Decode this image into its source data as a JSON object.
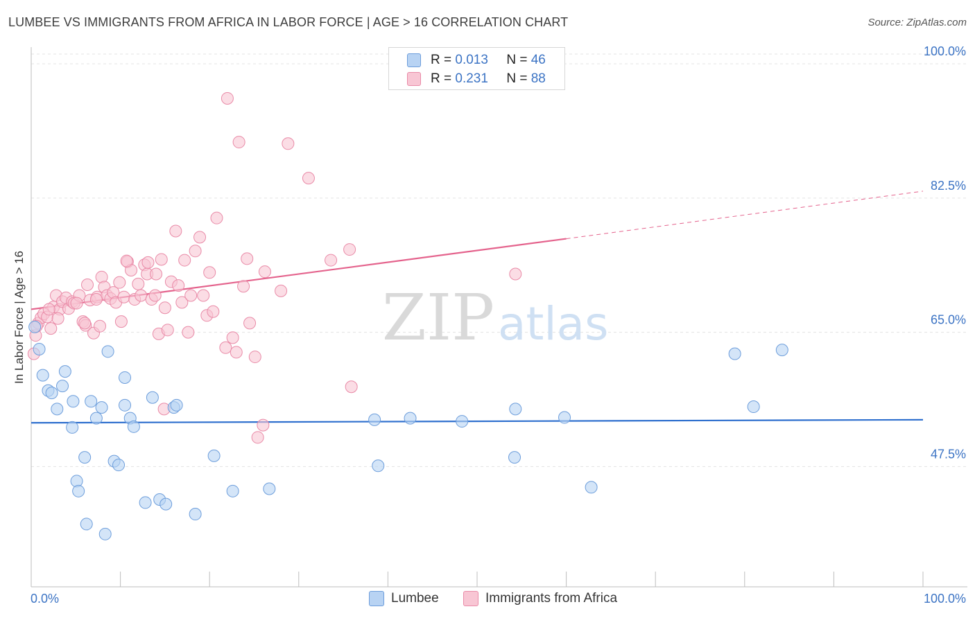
{
  "header": {
    "title": "LUMBEE VS IMMIGRANTS FROM AFRICA IN LABOR FORCE | AGE > 16 CORRELATION CHART",
    "source": "Source: ZipAtlas.com"
  },
  "legend": {
    "r_label": "R =",
    "n_label": "N =",
    "rows": [
      {
        "r": "0.013",
        "n": "46"
      },
      {
        "r": "0.231",
        "n": "88"
      }
    ]
  },
  "watermark": {
    "zip": "ZIP",
    "atlas": "atlas"
  },
  "colors": {
    "lumbee_fill": "#b8d3f3",
    "lumbee_stroke": "#6c9ddb",
    "lumbee_line": "#2e6fce",
    "africa_fill": "#f8c6d4",
    "africa_stroke": "#e98aa7",
    "africa_line": "#e4628c",
    "axis_value": "#3b73c4",
    "grid": "#e3e3e3"
  },
  "chart_data": {
    "type": "scatter",
    "title": "LUMBEE VS IMMIGRANTS FROM AFRICA IN LABOR FORCE | AGE > 16 CORRELATION CHART",
    "xlabel": "",
    "ylabel": "In Labor Force | Age > 16",
    "xlim": [
      0,
      100
    ],
    "ylim": [
      32.0,
      102.0
    ],
    "x_tick_labels": [
      "0.0%",
      "100.0%"
    ],
    "y_ticks": [
      100.0,
      82.5,
      65.0,
      47.5
    ],
    "y_tick_labels": [
      "100.0%",
      "82.5%",
      "65.0%",
      "47.5%"
    ],
    "grid": true,
    "legend_position": "top-center",
    "series": [
      {
        "name": "Lumbee",
        "r": 0.013,
        "n": 46,
        "trend": {
          "x": [
            0,
            100
          ],
          "y": [
            53.2,
            53.6
          ]
        },
        "points": [
          [
            0.4,
            65.7
          ],
          [
            0.9,
            62.8
          ],
          [
            1.3,
            59.4
          ],
          [
            1.9,
            57.4
          ],
          [
            2.3,
            57.1
          ],
          [
            2.9,
            55.0
          ],
          [
            3.5,
            58.0
          ],
          [
            3.8,
            59.9
          ],
          [
            4.6,
            52.6
          ],
          [
            4.7,
            56.0
          ],
          [
            5.1,
            45.6
          ],
          [
            5.3,
            44.3
          ],
          [
            6.0,
            48.7
          ],
          [
            6.2,
            40.0
          ],
          [
            6.7,
            56.0
          ],
          [
            7.3,
            53.8
          ],
          [
            7.9,
            55.2
          ],
          [
            8.3,
            38.7
          ],
          [
            8.6,
            62.5
          ],
          [
            9.3,
            48.2
          ],
          [
            9.8,
            47.7
          ],
          [
            10.5,
            59.1
          ],
          [
            10.5,
            55.5
          ],
          [
            11.1,
            53.8
          ],
          [
            11.5,
            52.7
          ],
          [
            12.8,
            42.8
          ],
          [
            13.6,
            56.5
          ],
          [
            14.4,
            43.2
          ],
          [
            15.1,
            42.6
          ],
          [
            16.0,
            55.2
          ],
          [
            16.3,
            55.5
          ],
          [
            18.4,
            41.3
          ],
          [
            20.5,
            48.9
          ],
          [
            22.6,
            44.3
          ],
          [
            26.7,
            44.6
          ],
          [
            38.5,
            53.6
          ],
          [
            38.9,
            47.6
          ],
          [
            42.5,
            53.8
          ],
          [
            48.3,
            53.4
          ],
          [
            54.3,
            55.0
          ],
          [
            54.2,
            48.7
          ],
          [
            59.8,
            53.9
          ],
          [
            62.8,
            44.8
          ],
          [
            78.9,
            62.2
          ],
          [
            81.0,
            55.3
          ],
          [
            84.2,
            62.7
          ]
        ]
      },
      {
        "name": "Immigrants from Africa",
        "r": 0.231,
        "n": 88,
        "trend": {
          "x": [
            0,
            60
          ],
          "y": [
            68.0,
            77.2
          ]
        },
        "trend_dashed": {
          "x": [
            60,
            100
          ],
          "y": [
            77.2,
            83.4
          ]
        },
        "points": [
          [
            0.3,
            62.2
          ],
          [
            0.5,
            64.6
          ],
          [
            0.8,
            66.2
          ],
          [
            1.1,
            66.9
          ],
          [
            1.4,
            67.4
          ],
          [
            1.8,
            67.0
          ],
          [
            2.2,
            65.5
          ],
          [
            2.5,
            68.3
          ],
          [
            2.8,
            69.8
          ],
          [
            3.2,
            68.0
          ],
          [
            3.5,
            69.0
          ],
          [
            3.9,
            69.5
          ],
          [
            4.2,
            68.1
          ],
          [
            4.6,
            69.0
          ],
          [
            4.8,
            68.8
          ],
          [
            5.4,
            69.8
          ],
          [
            5.8,
            66.4
          ],
          [
            6.1,
            65.9
          ],
          [
            6.3,
            71.2
          ],
          [
            6.6,
            69.2
          ],
          [
            7.0,
            64.9
          ],
          [
            7.4,
            69.6
          ],
          [
            7.7,
            65.8
          ],
          [
            7.9,
            72.2
          ],
          [
            8.2,
            70.9
          ],
          [
            8.5,
            69.8
          ],
          [
            8.9,
            69.4
          ],
          [
            9.2,
            70.2
          ],
          [
            9.5,
            68.9
          ],
          [
            9.9,
            71.5
          ],
          [
            10.1,
            66.4
          ],
          [
            10.4,
            69.6
          ],
          [
            10.8,
            74.2
          ],
          [
            11.2,
            73.1
          ],
          [
            11.6,
            69.3
          ],
          [
            12.0,
            71.3
          ],
          [
            12.3,
            69.8
          ],
          [
            12.7,
            73.8
          ],
          [
            13.0,
            72.6
          ],
          [
            13.5,
            69.3
          ],
          [
            14.0,
            72.6
          ],
          [
            14.3,
            64.8
          ],
          [
            14.6,
            74.5
          ],
          [
            15.0,
            68.2
          ],
          [
            15.3,
            65.3
          ],
          [
            15.7,
            71.6
          ],
          [
            16.2,
            78.2
          ],
          [
            16.5,
            71.1
          ],
          [
            16.9,
            68.9
          ],
          [
            17.2,
            74.4
          ],
          [
            17.6,
            65.0
          ],
          [
            17.9,
            69.8
          ],
          [
            18.4,
            75.6
          ],
          [
            18.9,
            77.4
          ],
          [
            19.3,
            69.8
          ],
          [
            19.7,
            67.2
          ],
          [
            20.0,
            72.8
          ],
          [
            20.4,
            67.7
          ],
          [
            20.8,
            79.9
          ],
          [
            21.8,
            63.0
          ],
          [
            22.0,
            95.5
          ],
          [
            22.6,
            64.3
          ],
          [
            23.0,
            62.4
          ],
          [
            23.3,
            89.8
          ],
          [
            23.8,
            71.0
          ],
          [
            24.2,
            74.6
          ],
          [
            24.5,
            66.2
          ],
          [
            25.1,
            61.8
          ],
          [
            26.0,
            52.9
          ],
          [
            25.4,
            51.3
          ],
          [
            26.2,
            72.9
          ],
          [
            28.0,
            70.4
          ],
          [
            28.8,
            89.6
          ],
          [
            31.1,
            85.1
          ],
          [
            33.6,
            74.4
          ],
          [
            35.7,
            75.8
          ],
          [
            35.9,
            57.9
          ],
          [
            54.3,
            72.6
          ],
          [
            10.7,
            74.3
          ],
          [
            13.1,
            74.1
          ],
          [
            13.9,
            69.8
          ],
          [
            14.9,
            55.0
          ],
          [
            7.3,
            69.3
          ],
          [
            6.0,
            66.2
          ],
          [
            5.1,
            68.8
          ],
          [
            3.0,
            66.8
          ],
          [
            2.0,
            68.0
          ],
          [
            0.6,
            65.8
          ]
        ]
      }
    ]
  },
  "bottom_legend": {
    "items": [
      {
        "label": "Lumbee"
      },
      {
        "label": "Immigrants from Africa"
      }
    ]
  }
}
